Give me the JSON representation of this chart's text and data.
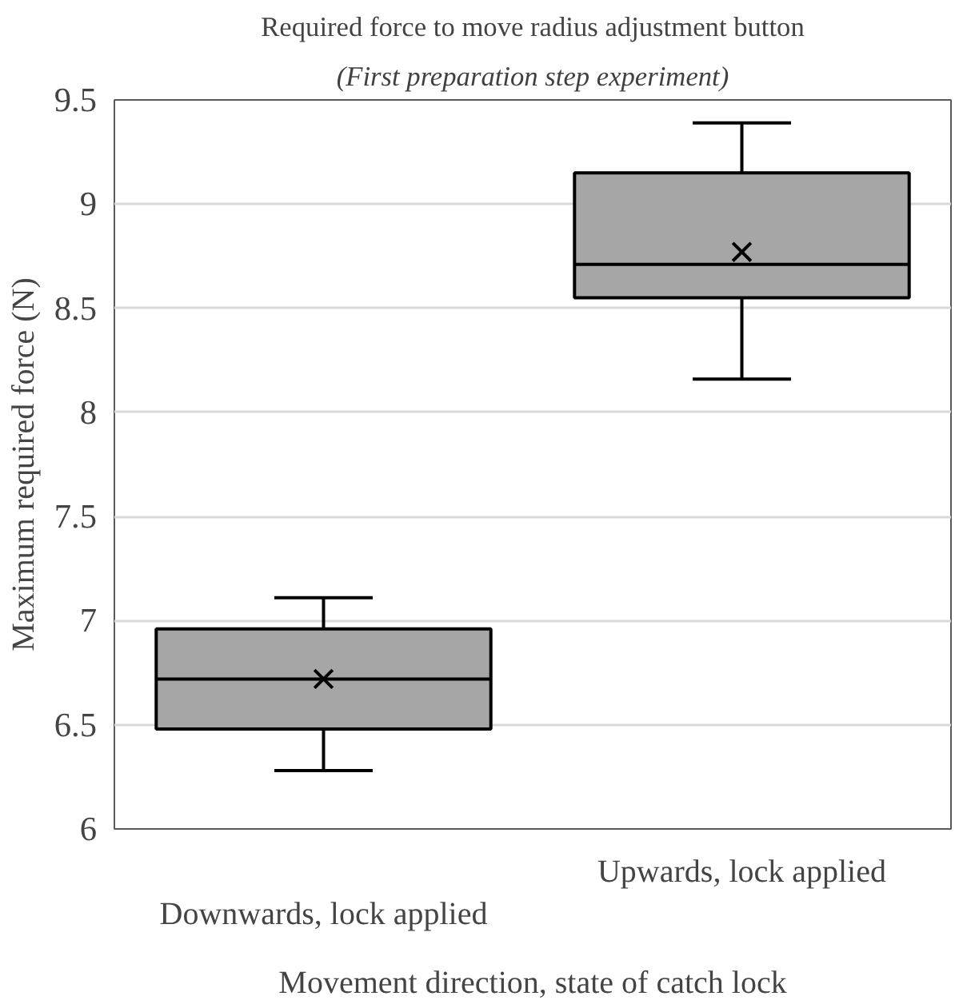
{
  "chart_data": {
    "type": "box",
    "title": "Required force to move radius adjustment button",
    "subtitle": "(First preparation step experiment)",
    "xlabel": "Movement direction, state of catch lock",
    "ylabel": "Maximum required force (N)",
    "categories": [
      "Downwards, lock applied",
      "Upwards, lock applied"
    ],
    "color": "#a6a6a6",
    "boxes": [
      {
        "low": 6.28,
        "q1": 6.48,
        "median": 6.72,
        "q3": 6.96,
        "high": 7.11,
        "mean": 6.72
      },
      {
        "low": 8.16,
        "q1": 8.55,
        "median": 8.71,
        "q3": 9.15,
        "high": 9.39,
        "mean": 8.77
      }
    ],
    "ylim": [
      6,
      9.5
    ],
    "yticks": [
      6,
      6.5,
      7,
      7.5,
      8,
      8.5,
      9,
      9.5
    ],
    "grid": "y"
  }
}
